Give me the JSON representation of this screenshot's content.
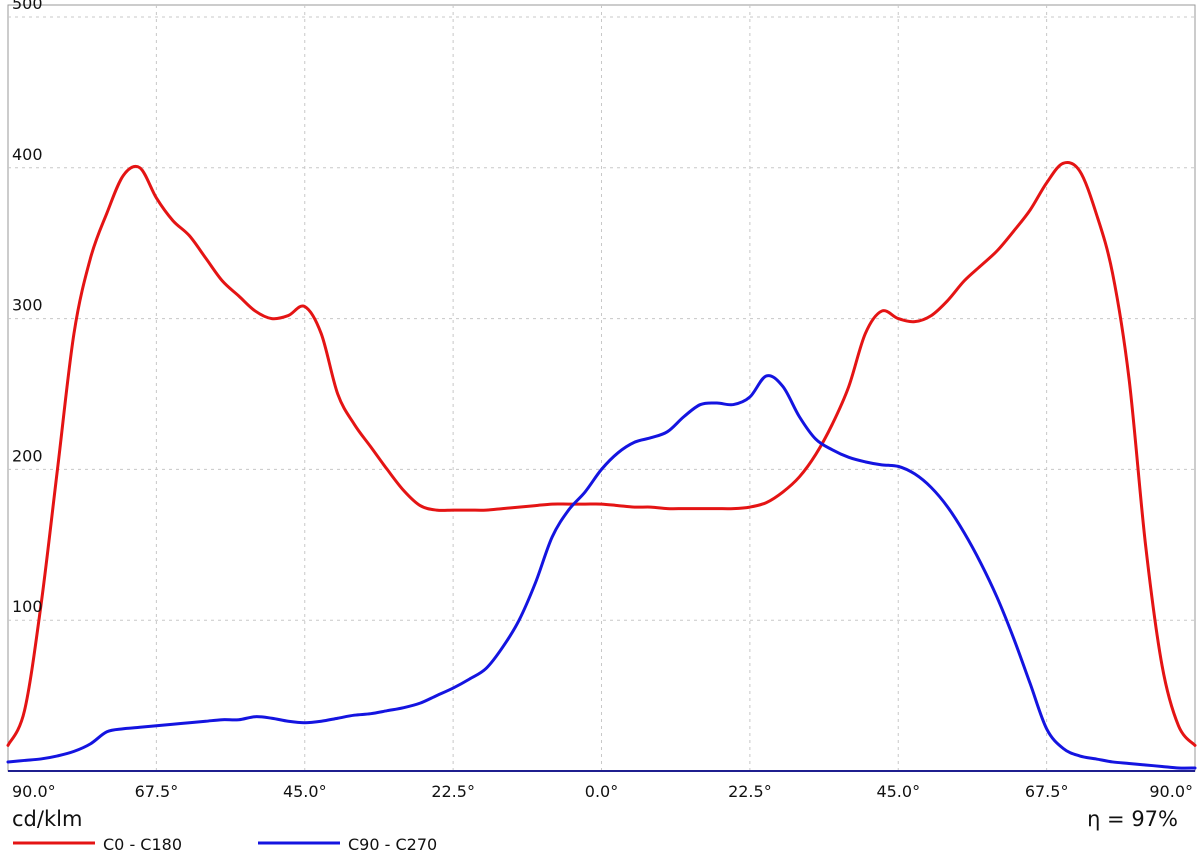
{
  "chart_data": {
    "type": "line",
    "unit_label": "cd/klm",
    "efficiency_label": "η = 97%",
    "ylim": [
      0,
      500
    ],
    "y_ticks": [
      100,
      200,
      300,
      400,
      500
    ],
    "y_tick_labels": [
      "100",
      "200",
      "300",
      "400",
      "500"
    ],
    "x_angle_values": [
      -90,
      -67.5,
      -45,
      -22.5,
      0,
      22.5,
      45,
      67.5,
      90
    ],
    "x_tick_labels": [
      "90.0°",
      "67.5°",
      "45.0°",
      "22.5°",
      "0.0°",
      "22.5°",
      "45.0°",
      "67.5°",
      "90.0°"
    ],
    "grid": true,
    "legend_position": "bottom-left",
    "series": [
      {
        "name": "C0 - C180",
        "color": "#e41414",
        "angles": [
          -90,
          -87.5,
          -85,
          -82.5,
          -80,
          -77.5,
          -75,
          -72.5,
          -70,
          -67.5,
          -65,
          -62.5,
          -60,
          -57.5,
          -55,
          -52.5,
          -50,
          -47.5,
          -45,
          -42.5,
          -40,
          -37.5,
          -35,
          -32.5,
          -30,
          -27.5,
          -25,
          -22.5,
          -20,
          -17.5,
          -15,
          -12.5,
          -10,
          -7.5,
          -5,
          -2.5,
          0,
          2.5,
          5,
          7.5,
          10,
          12.5,
          15,
          17.5,
          20,
          22.5,
          25,
          27.5,
          30,
          32.5,
          35,
          37.5,
          40,
          42.5,
          45,
          47.5,
          50,
          52.5,
          55,
          57.5,
          60,
          62.5,
          65,
          67.5,
          70,
          72.5,
          75,
          77.5,
          80,
          82.5,
          85,
          87.5,
          90
        ],
        "values": [
          17,
          40,
          110,
          200,
          290,
          340,
          370,
          395,
          400,
          380,
          365,
          355,
          340,
          325,
          315,
          305,
          300,
          302,
          308,
          290,
          250,
          230,
          215,
          200,
          186,
          176,
          173,
          173,
          173,
          173,
          174,
          175,
          176,
          177,
          177,
          177,
          177,
          176,
          175,
          175,
          174,
          174,
          174,
          174,
          174,
          175,
          178,
          185,
          195,
          210,
          230,
          255,
          290,
          305,
          300,
          298,
          302,
          312,
          325,
          335,
          345,
          358,
          372,
          390,
          403,
          398,
          370,
          330,
          260,
          150,
          70,
          30,
          17
        ]
      },
      {
        "name": "C90 - C270",
        "color": "#1414e0",
        "angles": [
          -90,
          -87.5,
          -85,
          -82.5,
          -80,
          -77.5,
          -75,
          -72.5,
          -70,
          -67.5,
          -65,
          -62.5,
          -60,
          -57.5,
          -55,
          -52.5,
          -50,
          -47.5,
          -45,
          -42.5,
          -40,
          -37.5,
          -35,
          -32.5,
          -30,
          -27.5,
          -25,
          -22.5,
          -20,
          -17.5,
          -15,
          -12.5,
          -10,
          -7.5,
          -5,
          -2.5,
          0,
          2.5,
          5,
          7.5,
          10,
          12.5,
          15,
          17.5,
          20,
          22.5,
          25,
          27.5,
          30,
          32.5,
          35,
          37.5,
          40,
          42.5,
          45,
          47.5,
          50,
          52.5,
          55,
          57.5,
          60,
          62.5,
          65,
          67.5,
          70,
          72.5,
          75,
          77.5,
          80,
          82.5,
          85,
          87.5,
          90
        ],
        "values": [
          6,
          7,
          8,
          10,
          13,
          18,
          26,
          28,
          29,
          30,
          31,
          32,
          33,
          34,
          34,
          36,
          35,
          33,
          32,
          33,
          35,
          37,
          38,
          40,
          42,
          45,
          50,
          55,
          61,
          68,
          82,
          100,
          125,
          155,
          173,
          185,
          200,
          211,
          218,
          221,
          225,
          235,
          243,
          244,
          243,
          248,
          262,
          255,
          235,
          220,
          213,
          208,
          205,
          203,
          202,
          197,
          188,
          175,
          158,
          138,
          115,
          88,
          58,
          28,
          15,
          10,
          8,
          6,
          5,
          4,
          3,
          2,
          2
        ]
      }
    ]
  }
}
